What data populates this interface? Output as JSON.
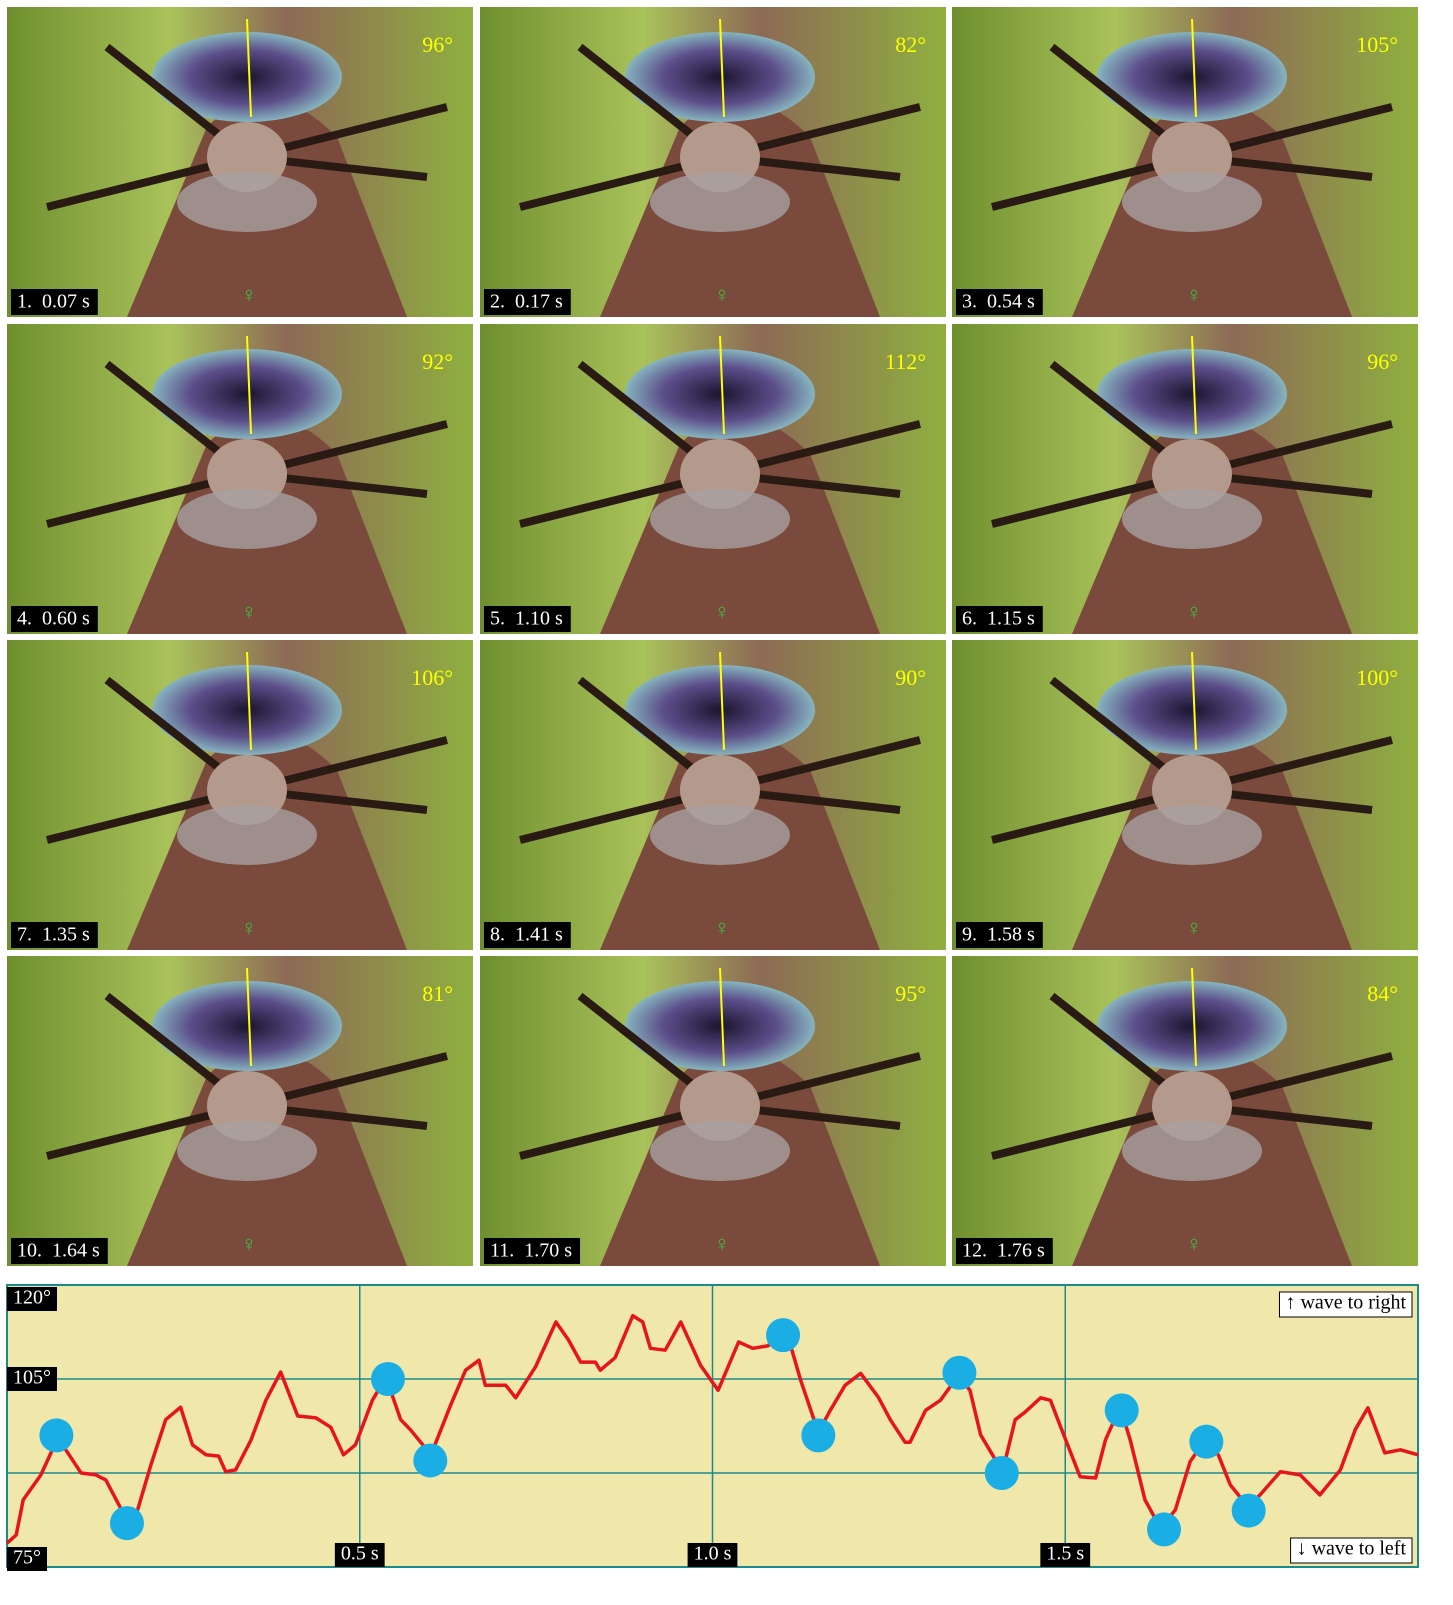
{
  "female_symbol": "♀",
  "panels": [
    {
      "label": "1.  0.07 s",
      "angle": "96°"
    },
    {
      "label": "2.  0.17 s",
      "angle": "82°"
    },
    {
      "label": "3.  0.54 s",
      "angle": "105°"
    },
    {
      "label": "4.  0.60 s",
      "angle": "92°"
    },
    {
      "label": "5.  1.10 s",
      "angle": "112°"
    },
    {
      "label": "6.  1.15 s",
      "angle": "96°"
    },
    {
      "label": "7.  1.35 s",
      "angle": "106°"
    },
    {
      "label": "8.  1.41 s",
      "angle": "90°"
    },
    {
      "label": "9.  1.58 s",
      "angle": "100°"
    },
    {
      "label": "10.  1.64 s",
      "angle": "81°"
    },
    {
      "label": "11.  1.70 s",
      "angle": "95°"
    },
    {
      "label": "12.  1.76 s",
      "angle": "84°"
    }
  ],
  "chart_data": {
    "type": "line",
    "xlim": [
      0,
      2.0
    ],
    "xticks": [
      {
        "value": 0.5,
        "label": "0.5 s"
      },
      {
        "value": 1.0,
        "label": "1.0 s"
      },
      {
        "value": 1.5,
        "label": "1.5 s"
      }
    ],
    "ylim": [
      75,
      120
    ],
    "yticks": [
      {
        "value": 120,
        "label": "120°"
      },
      {
        "value": 105,
        "label": "105°"
      },
      {
        "value": 90,
        "label": null
      },
      {
        "value": 75,
        "label": "75°"
      }
    ],
    "grid": true,
    "annotations": [
      "↑ wave to right",
      "↓ wave to left"
    ],
    "series": [
      {
        "color": "#e8141c",
        "x": [
          0.0,
          0.013,
          0.023,
          0.048,
          0.072,
          0.088,
          0.105,
          0.126,
          0.14,
          0.161,
          0.173,
          0.183,
          0.204,
          0.225,
          0.246,
          0.263,
          0.282,
          0.3,
          0.31,
          0.324,
          0.346,
          0.367,
          0.388,
          0.412,
          0.438,
          0.459,
          0.477,
          0.494,
          0.518,
          0.537,
          0.558,
          0.572,
          0.601,
          0.629,
          0.65,
          0.669,
          0.678,
          0.707,
          0.721,
          0.749,
          0.778,
          0.796,
          0.813,
          0.834,
          0.841,
          0.862,
          0.887,
          0.901,
          0.912,
          0.933,
          0.955,
          0.983,
          1.008,
          1.037,
          1.057,
          1.079,
          1.093,
          1.105,
          1.125,
          1.15,
          1.167,
          1.188,
          1.21,
          1.235,
          1.252,
          1.273,
          1.28,
          1.302,
          1.323,
          1.348,
          1.365,
          1.38,
          1.411,
          1.429,
          1.443,
          1.465,
          1.479,
          1.493,
          1.521,
          1.543,
          1.557,
          1.571,
          1.579,
          1.592,
          1.613,
          1.635,
          1.656,
          1.677,
          1.698,
          1.717,
          1.734,
          1.759,
          1.776,
          1.805,
          1.833,
          1.861,
          1.89,
          1.911,
          1.929,
          1.953,
          1.975,
          2.0
        ],
        "values": [
          78.8,
          80.1,
          85.7,
          89.7,
          95.6,
          92.9,
          90.0,
          89.7,
          88.9,
          84.4,
          81.5,
          83.3,
          91.3,
          98.5,
          100.5,
          94.5,
          92.9,
          92.7,
          90.2,
          90.5,
          95.3,
          101.6,
          106.1,
          99.1,
          98.8,
          97.3,
          92.9,
          94.5,
          101.6,
          105.3,
          98.5,
          96.9,
          92.9,
          100.9,
          106.4,
          108.0,
          104.0,
          104.0,
          102.0,
          106.9,
          114.1,
          111.2,
          107.7,
          107.7,
          106.4,
          108.4,
          115.1,
          114.1,
          109.9,
          109.6,
          114.1,
          107.2,
          103.2,
          110.9,
          109.9,
          110.3,
          112.5,
          112.5,
          104.8,
          96.5,
          100.0,
          104.0,
          105.9,
          102.1,
          98.5,
          94.9,
          94.9,
          100.0,
          101.6,
          105.5,
          103.2,
          96.1,
          90.2,
          98.5,
          99.7,
          102.0,
          101.6,
          97.5,
          89.4,
          89.2,
          95.3,
          98.8,
          100.0,
          95.3,
          85.7,
          81.2,
          84.1,
          91.8,
          95.3,
          92.9,
          88.1,
          84.6,
          86.5,
          90.2,
          89.7,
          86.5,
          90.5,
          96.9,
          100.4,
          93.2,
          93.7,
          92.9
        ]
      },
      {
        "color": "#1aaee5",
        "marker": "dot",
        "x": [
          0.07,
          0.17,
          0.54,
          0.6,
          1.1,
          1.15,
          1.35,
          1.41,
          1.58,
          1.64,
          1.7,
          1.76
        ],
        "values": [
          96,
          82,
          105,
          92,
          112,
          96,
          106,
          90,
          100,
          81,
          95,
          84
        ]
      }
    ]
  }
}
